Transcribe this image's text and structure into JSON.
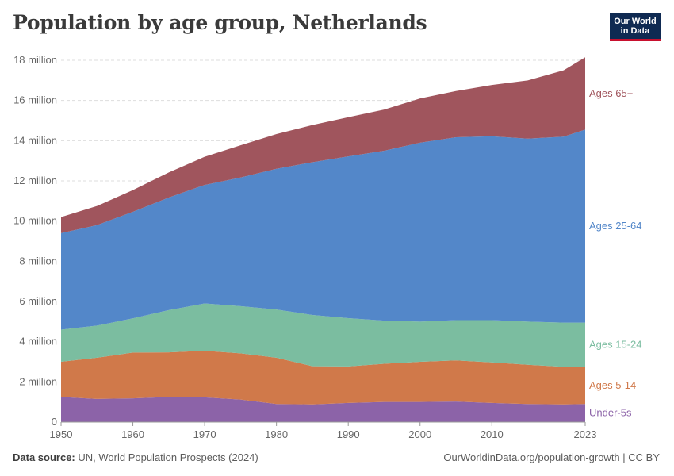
{
  "title": "Population by age group, Netherlands",
  "logo": {
    "line1": "Our World",
    "line2": "in Data"
  },
  "footer": {
    "source_label": "Data source:",
    "source_text": "UN, World Population Prospects (2024)",
    "url": "OurWorldinData.org/population-growth | CC BY"
  },
  "chart_data": {
    "type": "area",
    "stacked": true,
    "title": "Population by age group, Netherlands",
    "xlabel": "",
    "ylabel": "",
    "xlim": [
      1950,
      2023
    ],
    "ylim": [
      0,
      18000000
    ],
    "x_ticks": [
      1950,
      1960,
      1970,
      1980,
      1990,
      2000,
      2010,
      2023
    ],
    "y_ticks": [
      0,
      2000000,
      4000000,
      6000000,
      8000000,
      10000000,
      12000000,
      14000000,
      16000000,
      18000000
    ],
    "y_tick_labels": [
      "0",
      "2 million",
      "4 million",
      "6 million",
      "8 million",
      "10 million",
      "12 million",
      "14 million",
      "16 million",
      "18 million"
    ],
    "grid": "horizontal dashed",
    "legend": "inline labels at right end",
    "x": [
      1950,
      1955,
      1960,
      1965,
      1970,
      1975,
      1980,
      1985,
      1990,
      1995,
      2000,
      2005,
      2010,
      2015,
      2020,
      2023
    ],
    "series": [
      {
        "name": "Under-5s",
        "color": "#8c63a8",
        "values": [
          1250000,
          1150000,
          1180000,
          1250000,
          1230000,
          1120000,
          900000,
          880000,
          950000,
          1000000,
          1000000,
          1020000,
          950000,
          900000,
          880000,
          900000
        ]
      },
      {
        "name": "Ages 5-14",
        "color": "#d0794a",
        "values": [
          1750000,
          2050000,
          2280000,
          2220000,
          2320000,
          2300000,
          2300000,
          1900000,
          1820000,
          1900000,
          2000000,
          2050000,
          2020000,
          1950000,
          1870000,
          1850000
        ]
      },
      {
        "name": "Ages 15-24",
        "color": "#7bbda0",
        "values": [
          1600000,
          1600000,
          1700000,
          2100000,
          2350000,
          2350000,
          2400000,
          2550000,
          2400000,
          2150000,
          2000000,
          2000000,
          2100000,
          2150000,
          2200000,
          2200000
        ]
      },
      {
        "name": "Ages 25-64",
        "color": "#5387c9",
        "values": [
          4800000,
          5000000,
          5300000,
          5600000,
          5900000,
          6400000,
          7000000,
          7600000,
          8050000,
          8450000,
          8900000,
          9100000,
          9150000,
          9100000,
          9250000,
          9600000
        ]
      },
      {
        "name": "Ages 65+",
        "color": "#a0555d",
        "values": [
          800000,
          950000,
          1080000,
          1250000,
          1400000,
          1600000,
          1730000,
          1850000,
          1950000,
          2050000,
          2200000,
          2300000,
          2550000,
          2900000,
          3300000,
          3600000
        ]
      }
    ]
  }
}
